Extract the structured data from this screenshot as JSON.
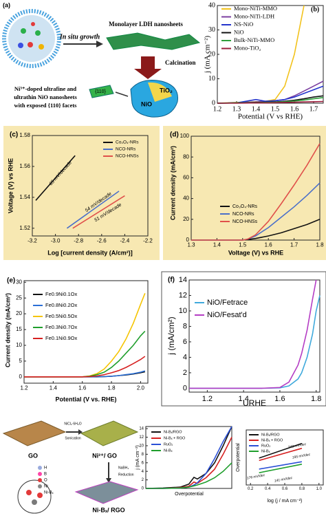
{
  "diagram_a": {
    "label": "(a)",
    "growth": "In situ growth",
    "sheets": "Monolayer LDH nanosheets",
    "calcination": "Calcination",
    "product": [
      "Ni³⁺-doped ultrafine and",
      "ultrathin NiO nanosheets",
      "with exposed {110} facets"
    ],
    "facet": "{110}",
    "tio2": "TiO₂",
    "nio": "NiO"
  },
  "diagram_g": {
    "go": "GO",
    "ni_go": "Ni²⁺/ GO",
    "reagent": "NiCl₂·6H₂O",
    "sonication": "Sonication",
    "nabh4": "NaBH₄",
    "reduction": "Reduction",
    "product": "Ni-Bₓ/ RGO",
    "atoms": [
      "H",
      "B",
      "O",
      "Ni",
      "Ni-Bₓ"
    ]
  },
  "chart_data": [
    {
      "type": "line",
      "panel_label": "(b)",
      "xlabel": "Potential (V vs RHE)",
      "ylabel": "j (mA cm⁻²)",
      "xlim": [
        1.2,
        1.75
      ],
      "xticks": [
        1.2,
        1.3,
        1.4,
        1.5,
        1.6,
        1.7
      ],
      "ylim": [
        0,
        40
      ],
      "yticks": [
        0,
        10,
        20,
        30,
        40
      ],
      "x": [
        1.2,
        1.3,
        1.4,
        1.45,
        1.5,
        1.55,
        1.6,
        1.65,
        1.7,
        1.75
      ],
      "series": [
        {
          "name": "Mono-NiTi-MMO",
          "color": "#f2c21b",
          "values": [
            0,
            0.3,
            0.6,
            0.8,
            1.5,
            7,
            20,
            40,
            null,
            null
          ]
        },
        {
          "name": "Mono-NiTi-LDH",
          "color": "#7b3fa0",
          "values": [
            0,
            0.2,
            0.5,
            0.8,
            1,
            1.5,
            3,
            5,
            7,
            9
          ]
        },
        {
          "name": "NS-NiO",
          "color": "#2233cc",
          "values": [
            0,
            0.1,
            1.5,
            0.8,
            1,
            1.5,
            2.5,
            4,
            5.5,
            7
          ]
        },
        {
          "name": "NiO",
          "color": "#111111",
          "values": [
            0,
            0.1,
            0.3,
            0.4,
            0.5,
            0.8,
            1.2,
            1.8,
            2.5,
            3
          ]
        },
        {
          "name": "Bulk-NiTi-MMO",
          "color": "#2e9e3a",
          "values": [
            0,
            0.1,
            0.2,
            0.3,
            0.4,
            0.6,
            0.9,
            1.3,
            1.8,
            2.3
          ]
        },
        {
          "name": "Mono-TiO₂",
          "color": "#9b1b3a",
          "values": [
            0,
            0,
            0.1,
            0.1,
            0.2,
            0.3,
            0.4,
            0.5,
            0.6,
            0.7
          ]
        }
      ]
    },
    {
      "type": "line",
      "panel_label": "(c)",
      "xlabel": "Log [current density (A/cm²)]",
      "ylabel": "Voltage (V) vs RHE",
      "xlim": [
        -3.2,
        -2.2
      ],
      "xticks": [
        -3.2,
        {
          "value": -3,
          "label": "-3.0"
        },
        -2.8,
        -2.6,
        -2.4,
        -2.2
      ],
      "ylim": [
        1.515,
        1.58
      ],
      "yticks": [
        1.52,
        1.54,
        1.56,
        1.58
      ],
      "annotations": [
        "65 mV/decade",
        "54 mV/decade",
        "51 mV/decade"
      ],
      "series": [
        {
          "name": "Co₃O₄-NRs",
          "color": "#111111",
          "x": [
            -3.17,
            -2.83
          ],
          "values": [
            1.538,
            1.567
          ]
        },
        {
          "name": "NCO-NRs",
          "color": "#4a6fc9",
          "x": [
            -2.9,
            -2.45
          ],
          "values": [
            1.52,
            1.544
          ]
        },
        {
          "name": "NCO-HNSs",
          "color": "#e0504a",
          "x": [
            -2.85,
            -2.4
          ],
          "values": [
            1.52,
            1.541
          ]
        }
      ]
    },
    {
      "type": "line",
      "panel_label": "(d)",
      "xlabel": "Voltage (V) vs RHE",
      "ylabel": "Current density (mA/cm²)",
      "xlim": [
        1.3,
        1.8
      ],
      "xticks": [
        1.3,
        1.4,
        1.5,
        1.6,
        1.7,
        1.8
      ],
      "ylim": [
        0,
        100
      ],
      "yticks": [
        0,
        20,
        40,
        60,
        80,
        100
      ],
      "x": [
        1.3,
        1.4,
        1.5,
        1.52,
        1.55,
        1.6,
        1.65,
        1.7,
        1.75,
        1.8
      ],
      "series": [
        {
          "name": "Co₃O₄-NRs",
          "color": "#111111",
          "values": [
            0,
            0,
            0,
            0.5,
            1.5,
            4,
            7,
            11,
            15,
            20
          ]
        },
        {
          "name": "NCO-NRs",
          "color": "#4a6fc9",
          "values": [
            0,
            0,
            0,
            1,
            4,
            12,
            22,
            32,
            43,
            55
          ]
        },
        {
          "name": "NCO-HNSs",
          "color": "#e0504a",
          "values": [
            0,
            0,
            0,
            1,
            5,
            18,
            35,
            53,
            72,
            93
          ]
        }
      ]
    },
    {
      "type": "line",
      "panel_label": "(e)",
      "xlabel": "Potential (V vs. RHE)",
      "ylabel": "Current density (mA/cm²)",
      "xlim": [
        1.2,
        2.05
      ],
      "xticks": [
        1.2,
        1.4,
        1.6,
        1.8,
        {
          "value": 2,
          "label": "2.0"
        }
      ],
      "ylim": [
        -2,
        30.5
      ],
      "yticks": [
        0,
        5,
        10,
        15,
        20,
        25,
        30
      ],
      "x": [
        1.2,
        1.4,
        1.6,
        1.65,
        1.7,
        1.75,
        1.8,
        1.85,
        1.9,
        1.95,
        2.0,
        2.03
      ],
      "series": [
        {
          "name": "Fe0.9Ni0.1Ox",
          "color": "#111111",
          "values": [
            0,
            0,
            0,
            0,
            0,
            0.1,
            0.2,
            0.4,
            0.6,
            0.9,
            1.3,
            1.6
          ]
        },
        {
          "name": "Fe0.8Ni0.2Ox",
          "color": "#2a6fd6",
          "values": [
            0,
            0,
            0,
            0,
            0.05,
            0.1,
            0.2,
            0.4,
            0.7,
            1,
            1.5,
            1.9
          ]
        },
        {
          "name": "Fe0.5Ni0.5Ox",
          "color": "#f5c400",
          "values": [
            0,
            0,
            0,
            0.3,
            1,
            2.5,
            5,
            8,
            12,
            17,
            23,
            26.5
          ]
        },
        {
          "name": "Fe0.3Ni0.7Ox",
          "color": "#1f9e2c",
          "values": [
            0,
            0,
            0,
            0.2,
            0.7,
            1.5,
            3,
            5,
            7.5,
            10,
            13,
            14.5
          ]
        },
        {
          "name": "Fe0.1Ni0.9Ox",
          "color": "#d62020",
          "values": [
            0,
            0,
            0,
            0.1,
            0.3,
            0.7,
            1.3,
            2,
            3,
            4.2,
            5.5,
            6.5
          ]
        }
      ]
    },
    {
      "type": "line",
      "panel_label": "(f)",
      "xlabel": "URHE",
      "ylabel": "j (mA/cm²)",
      "xlim": [
        1.1,
        1.82
      ],
      "xticks": [
        1.2,
        1.4,
        1.6,
        1.8
      ],
      "ylim": [
        -0.5,
        14
      ],
      "yticks": [
        0,
        2,
        4,
        6,
        8,
        10,
        12,
        14
      ],
      "x": [
        1.1,
        1.3,
        1.5,
        1.6,
        1.65,
        1.7,
        1.72,
        1.75,
        1.78,
        1.8,
        1.82
      ],
      "series": [
        {
          "name": "NiO/Fetrace",
          "color": "#3fa9dc",
          "values": [
            0,
            0,
            0,
            0.05,
            0.3,
            1.2,
            2,
            4,
            7,
            10,
            12
          ]
        },
        {
          "name": "NiO/Fesat'd",
          "color": "#b43cc4",
          "values": [
            0,
            0,
            0,
            0.1,
            0.8,
            3,
            4.5,
            7.5,
            11.5,
            14,
            null
          ]
        }
      ]
    },
    {
      "type": "line",
      "xlabel": "Overpotential",
      "ylabel": "j (mA cm⁻²)",
      "xlim": [
        0,
        0.5
      ],
      "ylim": [
        0,
        14.5
      ],
      "yticks": [
        0,
        2,
        4,
        6,
        8,
        10,
        12,
        14
      ],
      "x": [
        0,
        0.1,
        0.2,
        0.25,
        0.28,
        0.3,
        0.35,
        0.4,
        0.45,
        0.5
      ],
      "series": [
        {
          "name": "Ni-Bₓ/RGO",
          "color": "#111111",
          "values": [
            0,
            0.1,
            0.3,
            1,
            2.6,
            2.2,
            3.5,
            6,
            10,
            14.5
          ]
        },
        {
          "name": "Ni-Bₓ + RGO",
          "color": "#d62020",
          "values": [
            0,
            0,
            0.2,
            0.5,
            1.5,
            1.2,
            2.5,
            4.5,
            8,
            12
          ]
        },
        {
          "name": "RuO₂",
          "color": "#2a4fd6",
          "values": [
            0,
            0,
            0.1,
            0.3,
            0.8,
            1.3,
            3.5,
            7,
            11,
            14.5
          ]
        },
        {
          "name": "Ni-Bₓ",
          "color": "#1f9e2c",
          "values": [
            0,
            0,
            0.1,
            0.3,
            0.6,
            0.8,
            1.5,
            2.5,
            4,
            6
          ]
        }
      ]
    },
    {
      "type": "line",
      "xlabel": "log (j / mA cm⁻²)",
      "ylabel": "Overpotential",
      "xlim": [
        0.15,
        1.05
      ],
      "xticks": [
        0.2,
        0.4,
        0.6,
        0.8,
        {
          "value": 1,
          "label": "1.0"
        }
      ],
      "ylim": [
        0.2,
        0.65
      ],
      "annotations": [
        "243 mV/dec",
        "195 mV/dec",
        "176 mV/dec",
        "141 mV/dec"
      ],
      "series": [
        {
          "name": "Ni-Bₓ/RGO",
          "color": "#111111",
          "x": [
            0.3,
            0.8
          ],
          "values": [
            0.42,
            0.54
          ]
        },
        {
          "name": "Ni-Bₓ + RGO",
          "color": "#d62020",
          "x": [
            0.3,
            0.8
          ],
          "values": [
            0.4,
            0.5
          ]
        },
        {
          "name": "RuO₂",
          "color": "#2a4fd6",
          "x": [
            0.3,
            0.8
          ],
          "values": [
            0.33,
            0.39
          ]
        },
        {
          "name": "Ni-Bₓ",
          "color": "#1f9e2c",
          "x": [
            0.3,
            0.8
          ],
          "values": [
            0.3,
            0.37
          ]
        }
      ]
    }
  ]
}
